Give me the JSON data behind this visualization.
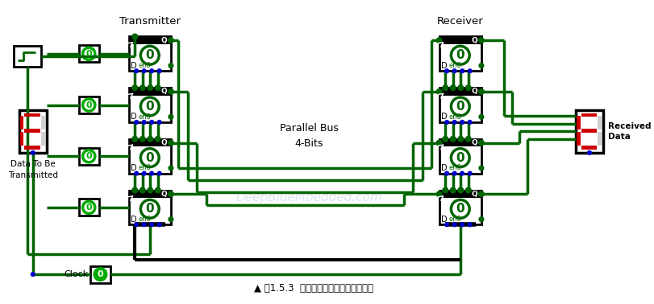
{
  "bg_color": "#ffffff",
  "wire_color": "#006400",
  "wire_lw": 2.5,
  "title_text": "▲ 图1.5.3  并行传输：四位并行传输总线",
  "transmitter_label": "Transmitter",
  "receiver_label": "Receiver",
  "parallel_bus_label": "Parallel Bus\n4-Bits",
  "data_to_be_label": "Data To Be\nTransmitted",
  "received_data_label": "Received\nData",
  "clock_label": "Clock",
  "dot_color": "#0000cc",
  "seg_color": "#cc0000",
  "watermark": "DeepBlueMbedded.com",
  "dff_circle_color": "#006400",
  "green_fill": "#00aa00"
}
